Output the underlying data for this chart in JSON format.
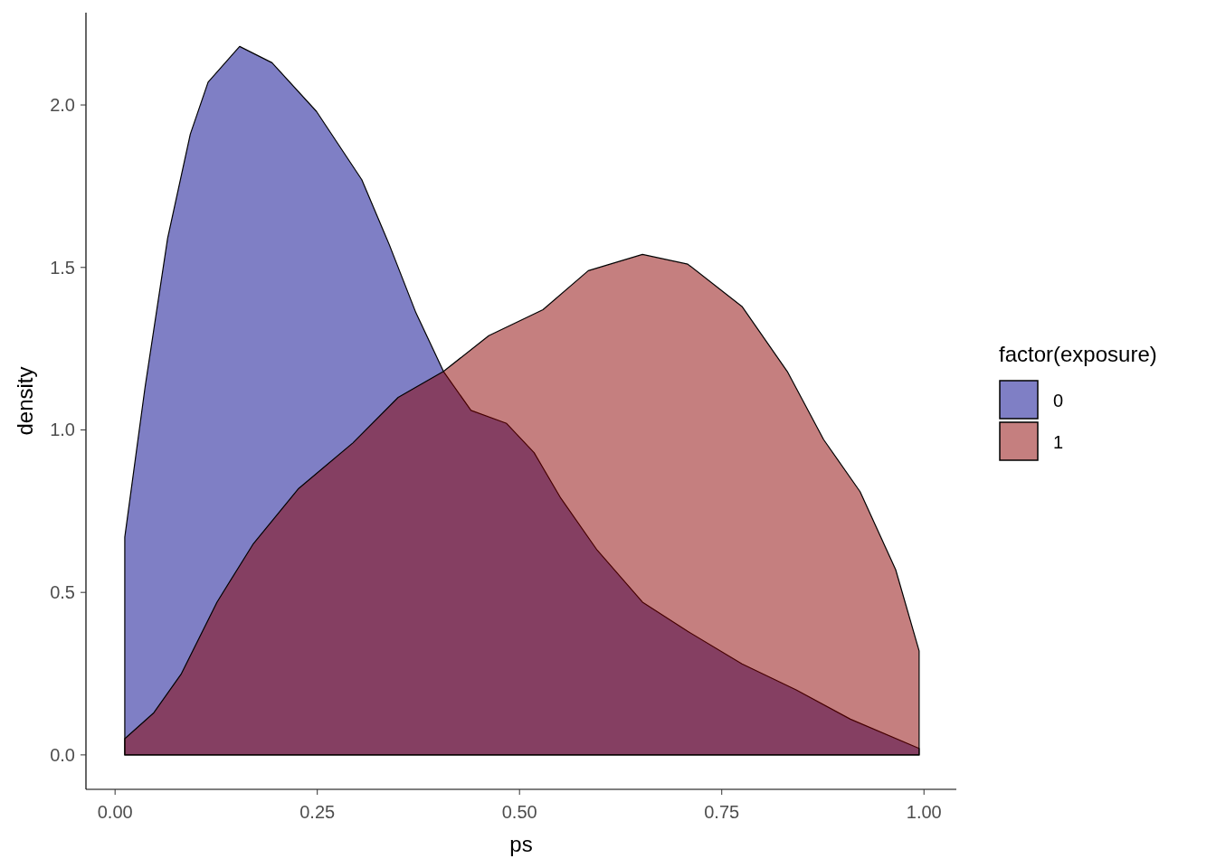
{
  "chart_data": {
    "type": "area",
    "xlabel": "ps",
    "ylabel": "density",
    "legend_title": "factor(exposure)",
    "legend": "right",
    "grid": false,
    "xlim": [
      -0.036,
      1.04
    ],
    "ylim": [
      -0.106,
      2.284
    ],
    "xticks": [
      {
        "value": 0,
        "label": "0.00"
      },
      {
        "value": 0.25,
        "label": "0.25"
      },
      {
        "value": 0.5,
        "label": "0.50"
      },
      {
        "value": 0.75,
        "label": "0.75"
      },
      {
        "value": 1,
        "label": "1.00"
      }
    ],
    "yticks": [
      {
        "value": 0,
        "label": "0.0"
      },
      {
        "value": 0.5,
        "label": "0.5"
      },
      {
        "value": 1,
        "label": "1.0"
      },
      {
        "value": 1.5,
        "label": "1.5"
      },
      {
        "value": 2,
        "label": "2.0"
      }
    ],
    "series": [
      {
        "name": "0",
        "color": "#00008b",
        "x": [
          0.012,
          0.037,
          0.065,
          0.093,
          0.115,
          0.154,
          0.194,
          0.249,
          0.305,
          0.339,
          0.372,
          0.406,
          0.44,
          0.484,
          0.518,
          0.551,
          0.596,
          0.652,
          0.708,
          0.775,
          0.842,
          0.909,
          0.994
        ],
        "values": [
          0.67,
          1.13,
          1.59,
          1.91,
          2.07,
          2.18,
          2.13,
          1.98,
          1.77,
          1.57,
          1.36,
          1.18,
          1.06,
          1.02,
          0.93,
          0.79,
          0.63,
          0.47,
          0.38,
          0.28,
          0.2,
          0.11,
          0.02
        ]
      },
      {
        "name": "1",
        "color": "#8b0000",
        "x": [
          0.012,
          0.048,
          0.082,
          0.126,
          0.171,
          0.227,
          0.294,
          0.35,
          0.406,
          0.462,
          0.529,
          0.585,
          0.652,
          0.708,
          0.775,
          0.831,
          0.876,
          0.921,
          0.965,
          0.994
        ],
        "values": [
          0.05,
          0.13,
          0.25,
          0.47,
          0.65,
          0.82,
          0.96,
          1.1,
          1.18,
          1.29,
          1.37,
          1.49,
          1.54,
          1.51,
          1.38,
          1.18,
          0.97,
          0.81,
          0.57,
          0.32
        ]
      }
    ]
  }
}
